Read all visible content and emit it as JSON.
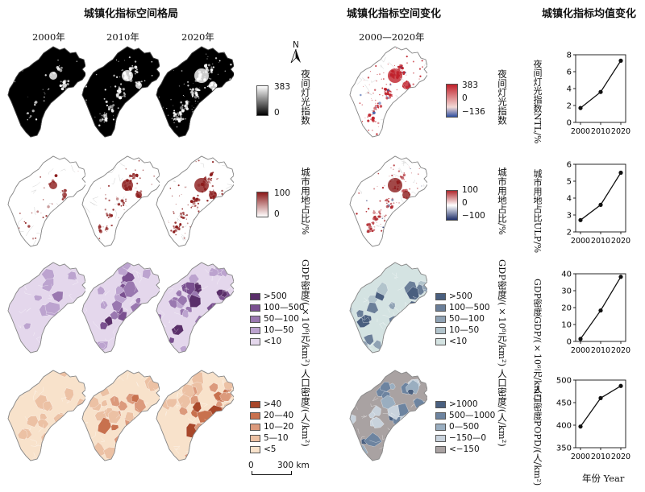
{
  "headers": {
    "pattern": "城镇化指标空间格局",
    "change": "城镇化指标空间变化",
    "mean": "城镇化指标均值变化"
  },
  "years": [
    "2000年",
    "2010年",
    "2020年"
  ],
  "change_period": "2000—2020年",
  "north": "N",
  "scalebar": {
    "zero": "0",
    "end": "300 km"
  },
  "x_axis_label": "年份 Year",
  "rows": [
    {
      "label": "夜间灯光指数",
      "change_label": "夜间灯光指数",
      "legend": {
        "type": "continuous",
        "max": "383",
        "min": "0"
      },
      "change_legend": {
        "type": "diverging",
        "max": "383",
        "mid": "0",
        "min": "−136"
      },
      "colors": {
        "low": "#000000",
        "high": "#ffffff",
        "change_pos": "#c0202a",
        "change_neg": "#2f4fa0"
      }
    },
    {
      "label": "城市用地占比/%",
      "change_label": "城市用地占比/%",
      "legend": {
        "type": "continuous",
        "max": "100",
        "min": "0"
      },
      "change_legend": {
        "type": "diverging",
        "max": "100",
        "mid": "0",
        "min": "−100"
      },
      "colors": {
        "low": "#ffffff",
        "high": "#8b1a1a",
        "change_pos": "#b0282e",
        "change_neg": "#1f2f6a"
      }
    },
    {
      "label": "GDP密度/(×10⁶元/km²)",
      "change_label": "GDP密度/(×10⁶元/km²)",
      "legend": {
        "type": "class",
        "classes": [
          ">500",
          "100—500",
          "50—100",
          "10—50",
          "<10"
        ],
        "colors": [
          "#5a2f6a",
          "#7a5090",
          "#9a78b0",
          "#bca3cf",
          "#e4d7ec"
        ]
      },
      "change_legend": {
        "type": "class",
        "classes": [
          ">500",
          "100—500",
          "50—100",
          "10—50",
          "<10"
        ],
        "colors": [
          "#4a5f7f",
          "#6b7f99",
          "#8fa2b4",
          "#b2c4cc",
          "#d4e3e2"
        ]
      }
    },
    {
      "label": "人口密度/(人/km²)",
      "change_label": "人口密度/(人/km²)",
      "legend": {
        "type": "class",
        "classes": [
          ">40",
          "20—40",
          "10—20",
          "5—10",
          "<5"
        ],
        "colors": [
          "#a8472a",
          "#c8714e",
          "#dc9a7c",
          "#ecc1a4",
          "#f8e2cb"
        ]
      },
      "change_legend": {
        "type": "class",
        "classes": [
          ">1000",
          "500—1000",
          "0—500",
          "−150—0",
          "<−150"
        ],
        "colors": [
          "#4a6080",
          "#6d84a0",
          "#9aaec0",
          "#c8d2dc",
          "#a9a2a2"
        ]
      }
    }
  ],
  "chart_data": [
    {
      "type": "line",
      "title": "夜间灯光指数",
      "ylabel": "NTL/%",
      "x": [
        2000,
        2010,
        2020
      ],
      "values": [
        1.7,
        3.6,
        7.3
      ],
      "ylim": [
        0,
        8
      ],
      "yticks": [
        "0",
        "2",
        "4",
        "6",
        "8"
      ],
      "xticks": [
        "2000",
        "2010",
        "2020"
      ]
    },
    {
      "type": "line",
      "title": "城市用地占比",
      "ylabel": "ULP/%",
      "x": [
        2000,
        2010,
        2020
      ],
      "values": [
        2.7,
        3.6,
        5.5
      ],
      "ylim": [
        2,
        6
      ],
      "yticks": [
        "2",
        "3",
        "4",
        "5",
        "6"
      ],
      "xticks": [
        "2000",
        "2010",
        "2020"
      ]
    },
    {
      "type": "line",
      "title": "GDP密度",
      "ylabel": "GDP/(×10⁶元/km²)",
      "x": [
        2000,
        2010,
        2020
      ],
      "values": [
        1.5,
        18.3,
        38.2
      ],
      "ylim": [
        0,
        40
      ],
      "yticks": [
        "0",
        "10",
        "20",
        "30",
        "40"
      ],
      "xticks": [
        "2000",
        "2010",
        "2020"
      ]
    },
    {
      "type": "line",
      "title": "人口密度",
      "ylabel": "POPD/(人/km²)",
      "x": [
        2000,
        2010,
        2020
      ],
      "values": [
        397,
        460,
        487
      ],
      "ylim": [
        350,
        500
      ],
      "yticks": [
        "350",
        "400",
        "450",
        "500"
      ],
      "xticks": [
        "2000",
        "2010",
        "2020"
      ]
    }
  ]
}
